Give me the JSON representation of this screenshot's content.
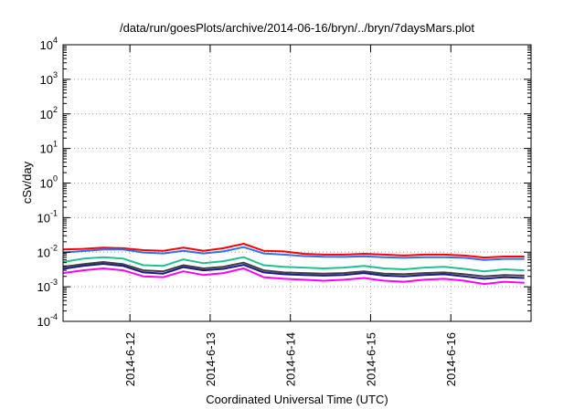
{
  "chart_data": {
    "type": "line",
    "title": "/data/run/goesPlots/archive/2014-06-16/bryn/../bryn/7daysMars.plot",
    "xlabel": "Coordinated Universal Time (UTC)",
    "ylabel": "cSv/day",
    "yscale": "log",
    "ylim": [
      0.0001,
      10000
    ],
    "y_tick_labels": [
      {
        "base": "10",
        "exp": "-4"
      },
      {
        "base": "10",
        "exp": "-3"
      },
      {
        "base": "10",
        "exp": "-2"
      },
      {
        "base": "10",
        "exp": "-1"
      },
      {
        "base": "10",
        "exp": "0"
      },
      {
        "base": "10",
        "exp": "1"
      },
      {
        "base": "10",
        "exp": "2"
      },
      {
        "base": "10",
        "exp": "3"
      },
      {
        "base": "10",
        "exp": "4"
      }
    ],
    "xlim": [
      "2014-06-11T04:00",
      "2014-06-17T00:00"
    ],
    "x_ticks": [
      {
        "x": "2014-06-12T00:00",
        "label": "2014-6-12"
      },
      {
        "x": "2014-06-13T00:00",
        "label": "2014-6-13"
      },
      {
        "x": "2014-06-14T00:00",
        "label": "2014-6-14"
      },
      {
        "x": "2014-06-15T00:00",
        "label": "2014-6-15"
      },
      {
        "x": "2014-06-16T00:00",
        "label": "2014-6-16"
      }
    ],
    "grid": true,
    "legend": "none",
    "x": [
      "2014-06-11T04:00",
      "2014-06-11T10:00",
      "2014-06-11T16:00",
      "2014-06-11T22:00",
      "2014-06-12T04:00",
      "2014-06-12T10:00",
      "2014-06-12T16:00",
      "2014-06-12T22:00",
      "2014-06-13T04:00",
      "2014-06-13T10:00",
      "2014-06-13T16:00",
      "2014-06-13T22:00",
      "2014-06-14T04:00",
      "2014-06-14T10:00",
      "2014-06-14T16:00",
      "2014-06-14T22:00",
      "2014-06-15T04:00",
      "2014-06-15T10:00",
      "2014-06-15T16:00",
      "2014-06-15T22:00",
      "2014-06-16T04:00",
      "2014-06-16T10:00",
      "2014-06-16T16:00",
      "2014-06-16T22:00"
    ],
    "series": [
      {
        "color": "#ff0000",
        "values": [
          0.012,
          0.0125,
          0.0135,
          0.013,
          0.0115,
          0.011,
          0.0135,
          0.011,
          0.013,
          0.0175,
          0.011,
          0.0105,
          0.009,
          0.0085,
          0.0085,
          0.009,
          0.0085,
          0.008,
          0.0085,
          0.0085,
          0.008,
          0.007,
          0.0075,
          0.0075
        ]
      },
      {
        "color": "#3070f0",
        "values": [
          0.0098,
          0.0108,
          0.012,
          0.012,
          0.0098,
          0.0092,
          0.011,
          0.0092,
          0.0105,
          0.014,
          0.0092,
          0.0085,
          0.0077,
          0.0074,
          0.0073,
          0.0076,
          0.0072,
          0.0069,
          0.0072,
          0.0072,
          0.0069,
          0.006,
          0.0064,
          0.0064
        ]
      },
      {
        "color": "#20c090",
        "values": [
          0.0052,
          0.0065,
          0.0072,
          0.0065,
          0.0042,
          0.004,
          0.0062,
          0.0048,
          0.0055,
          0.0072,
          0.0042,
          0.0038,
          0.0036,
          0.0034,
          0.0036,
          0.004,
          0.0034,
          0.0032,
          0.0036,
          0.0038,
          0.0033,
          0.0028,
          0.0032,
          0.003
        ]
      },
      {
        "color": "#404040",
        "values": [
          0.0038,
          0.0045,
          0.0052,
          0.0045,
          0.003,
          0.0028,
          0.0042,
          0.0034,
          0.0038,
          0.005,
          0.003,
          0.0026,
          0.0025,
          0.0024,
          0.0025,
          0.0028,
          0.0024,
          0.0023,
          0.0025,
          0.0026,
          0.0023,
          0.002,
          0.0022,
          0.0021
        ]
      },
      {
        "color": "#1a1a8a",
        "values": [
          0.0033,
          0.004,
          0.0046,
          0.004,
          0.0026,
          0.0024,
          0.0037,
          0.003,
          0.0033,
          0.0043,
          0.0026,
          0.0023,
          0.0022,
          0.0021,
          0.0022,
          0.0025,
          0.0021,
          0.002,
          0.0022,
          0.0023,
          0.002,
          0.0017,
          0.0019,
          0.0018
        ]
      },
      {
        "color": "#ff00ff",
        "values": [
          0.0025,
          0.003,
          0.0034,
          0.003,
          0.002,
          0.0019,
          0.0028,
          0.0022,
          0.0025,
          0.0034,
          0.0019,
          0.0017,
          0.0016,
          0.0015,
          0.0016,
          0.0018,
          0.0015,
          0.0014,
          0.0016,
          0.0017,
          0.0015,
          0.0012,
          0.0014,
          0.0013
        ]
      }
    ]
  }
}
